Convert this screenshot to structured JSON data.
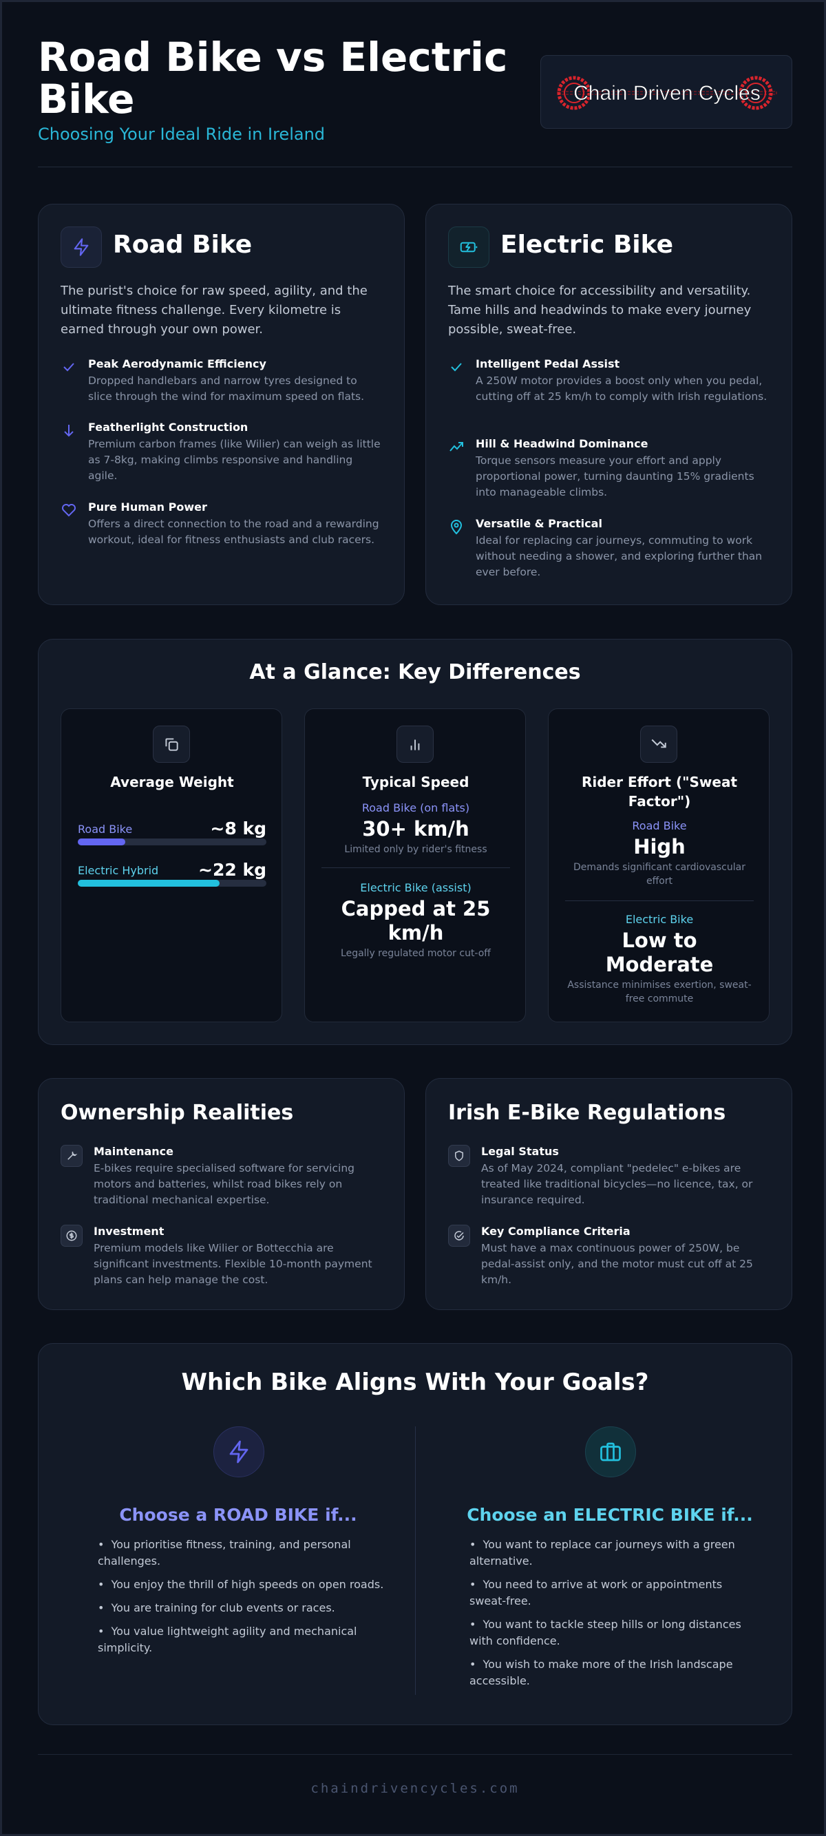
{
  "header": {
    "title": "Road Bike vs Electric Bike",
    "subtitle": "Choosing Your Ideal Ride in Ireland",
    "logo_text": "Chain Driven Cycles"
  },
  "colors": {
    "road_accent": "#6366f1",
    "electric_accent": "#22c0de",
    "road_light": "#8b93f8",
    "electric_light": "#5ed3ee"
  },
  "road": {
    "icon": "lightning-icon",
    "title": "Road Bike",
    "description": "The purist's choice for raw speed, agility, and the ultimate fitness challenge. Every kilometre is earned through your own power.",
    "features": [
      {
        "icon": "check-icon",
        "title": "Peak Aerodynamic Efficiency",
        "text": "Dropped handlebars and narrow tyres designed to slice through the wind for maximum speed on flats."
      },
      {
        "icon": "arrow-down-icon",
        "title": "Featherlight Construction",
        "text": "Premium carbon frames (like Wilier) can weigh as little as 7-8kg, making climbs responsive and handling agile."
      },
      {
        "icon": "heart-icon",
        "title": "Pure Human Power",
        "text": "Offers a direct connection to the road and a rewarding workout, ideal for fitness enthusiasts and club racers."
      }
    ]
  },
  "electric": {
    "icon": "battery-charging-icon",
    "title": "Electric Bike",
    "description": "The smart choice for accessibility and versatility. Tame hills and headwinds to make every journey possible, sweat-free.",
    "features": [
      {
        "icon": "check-icon",
        "title": "Intelligent Pedal Assist",
        "text": "A 250W motor provides a boost only when you pedal, cutting off at 25 km/h to comply with Irish regulations."
      },
      {
        "icon": "trending-up-icon",
        "title": "Hill & Headwind Dominance",
        "text": "Torque sensors measure your effort and apply proportional power, turning daunting 15% gradients into manageable climbs."
      },
      {
        "icon": "map-pin-icon",
        "title": "Versatile & Practical",
        "text": "Ideal for replacing car journeys, commuting to work without needing a shower, and exploring further than ever before."
      }
    ]
  },
  "glance": {
    "title": "At a Glance: Key Differences",
    "weight": {
      "title": "Average Weight",
      "road_label": "Road Bike",
      "road_value": "~8 kg",
      "road_fill_pct": 25,
      "electric_label": "Electric Hybrid",
      "electric_value": "~22 kg",
      "electric_fill_pct": 75
    },
    "speed": {
      "title": "Typical Speed",
      "road_label": "Road Bike (on flats)",
      "road_value": "30+ km/h",
      "road_note": "Limited only by rider's fitness",
      "electric_label": "Electric Bike (assist)",
      "electric_value": "Capped at 25 km/h",
      "electric_note": "Legally regulated motor cut-off"
    },
    "effort": {
      "title": "Rider Effort (\"Sweat Factor\")",
      "road_label": "Road Bike",
      "road_value": "High",
      "road_note": "Demands significant cardiovascular effort",
      "electric_label": "Electric Bike",
      "electric_value": "Low to Moderate",
      "electric_note": "Assistance minimises exertion, sweat-free commute"
    }
  },
  "ownership": {
    "title": "Ownership Realities",
    "items": [
      {
        "title": "Maintenance",
        "text": "E-bikes require specialised software for servicing motors and batteries, whilst road bikes rely on traditional mechanical expertise."
      },
      {
        "title": "Investment",
        "text": "Premium models like Wilier or Bottecchia are significant investments. Flexible 10-month payment plans can help manage the cost."
      }
    ]
  },
  "regulations": {
    "title": "Irish E-Bike Regulations",
    "items": [
      {
        "title": "Legal Status",
        "text": "As of May 2024, compliant \"pedelec\" e-bikes are treated like traditional bicycles—no licence, tax, or insurance required."
      },
      {
        "title": "Key Compliance Criteria",
        "text": "Must have a max continuous power of 250W, be pedal-assist only, and the motor must cut off at 25 km/h."
      }
    ]
  },
  "goals": {
    "title": "Which Bike Aligns With Your Goals?",
    "road": {
      "heading": "Choose a ROAD BIKE if...",
      "items": [
        "You prioritise fitness, training, and personal challenges.",
        "You enjoy the thrill of high speeds on open roads.",
        "You are training for club events or races.",
        "You value lightweight agility and mechanical simplicity."
      ]
    },
    "electric": {
      "heading": "Choose an ELECTRIC BIKE if...",
      "items": [
        "You want to replace car journeys with a green alternative.",
        "You need to arrive at work or appointments sweat-free.",
        "You want to tackle steep hills or long distances with confidence.",
        "You wish to make more of the Irish landscape accessible."
      ]
    }
  },
  "footer": {
    "text": "chaindrivencycles.com"
  }
}
